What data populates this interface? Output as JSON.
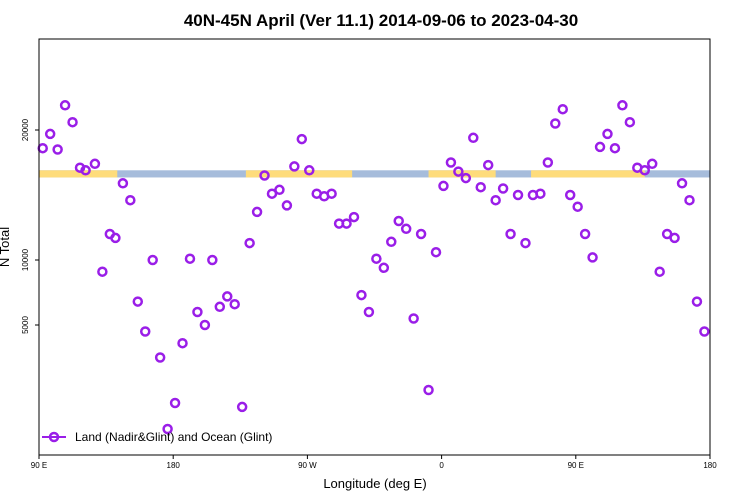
{
  "chart_data": {
    "type": "scatter",
    "title": "40N-45N April (Ver 11.1)   2014-09-06 to 2023-04-30",
    "xlabel": "Longitude (deg E)",
    "ylabel": "N Total",
    "xlim": [
      90,
      450
    ],
    "ylim": [
      -5000,
      27000
    ],
    "x_ticks": [
      {
        "value": 90,
        "label": "90 E"
      },
      {
        "value": 162,
        "label": "180"
      },
      {
        "value": 234,
        "label": "90 W"
      },
      {
        "value": 306,
        "label": "0"
      },
      {
        "value": 378,
        "label": "90 E"
      },
      {
        "value": 450,
        "label": "180"
      }
    ],
    "y_ticks": [
      {
        "value": 5000,
        "label": "5000"
      },
      {
        "value": 10000,
        "label": "10000"
      },
      {
        "value": 20000,
        "label": "20000"
      }
    ],
    "grid": false,
    "legend_position": "bottom-left",
    "surface_strip": {
      "y_range": [
        16350,
        16900
      ],
      "land_color": "#fedc7b",
      "ocean_color": "#a6bcdb",
      "land_intervals": [
        [
          90,
          132
        ],
        [
          201,
          258
        ],
        [
          299,
          335
        ],
        [
          354,
          415
        ]
      ]
    },
    "series": [
      {
        "name": "Land (Nadir&Glint) and Ocean (Glint)",
        "color": "#9a1ee8",
        "x": [
          92,
          96,
          100,
          104,
          108,
          112,
          115,
          120,
          124,
          128,
          131,
          135,
          139,
          143,
          147,
          151,
          155,
          159,
          163,
          167,
          171,
          175,
          179,
          183,
          187,
          191,
          195,
          199,
          203,
          207,
          211,
          215,
          219,
          223,
          227,
          231,
          235,
          239,
          243,
          247,
          251,
          255,
          259,
          263,
          267,
          271,
          275,
          279,
          283,
          287,
          291,
          295,
          299,
          303,
          307,
          311,
          315,
          319,
          323,
          327,
          331,
          335,
          339,
          343,
          347,
          351,
          355,
          359,
          363,
          367,
          371,
          375,
          379,
          383,
          387,
          391,
          395,
          399,
          403,
          407,
          411,
          415,
          419,
          423,
          427,
          431,
          435,
          439,
          443,
          447
        ],
        "y": [
          18600,
          19700,
          18500,
          21900,
          20600,
          17100,
          16900,
          17400,
          9100,
          12000,
          11700,
          15900,
          14600,
          6800,
          4500,
          10000,
          2500,
          -3000,
          -1000,
          3600,
          10100,
          6000,
          5000,
          10000,
          6400,
          7200,
          6600,
          -1300,
          11300,
          13700,
          16500,
          15100,
          15400,
          14200,
          17200,
          19300,
          16900,
          15100,
          14900,
          15100,
          12800,
          12800,
          13300,
          7300,
          6000,
          10100,
          9400,
          11400,
          13000,
          12400,
          5500,
          12000,
          0,
          10600,
          15700,
          17500,
          16800,
          16300,
          19400,
          15600,
          17300,
          14600,
          15500,
          12000,
          15000,
          11300,
          15000,
          15100,
          17500,
          20500,
          21600,
          15000,
          14100,
          12000,
          10200,
          18700,
          19700,
          18600,
          21900,
          20600,
          17100,
          16900,
          17400,
          9100,
          12000,
          11700,
          15900,
          14600,
          6800,
          4500
        ]
      }
    ]
  }
}
